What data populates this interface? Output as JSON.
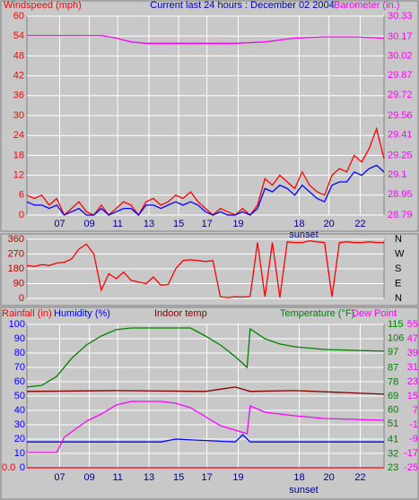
{
  "chart_data": [
    {
      "type": "line",
      "title": "Current last 24 hours : December 02 2004",
      "ylabel": "Windspeed (mph)",
      "y2label": "Barometer (in.)",
      "xlim": [
        0,
        24
      ],
      "xticks": [
        {
          "value": 2.2,
          "label": "07"
        },
        {
          "value": 4.2,
          "label": "09"
        },
        {
          "value": 6.1,
          "label": "11"
        },
        {
          "value": 8.2,
          "label": "13"
        },
        {
          "value": 10.2,
          "label": "15"
        },
        {
          "value": 12.1,
          "label": "17"
        },
        {
          "value": 14.2,
          "label": "19"
        },
        {
          "value": 18.3,
          "label": "18"
        },
        {
          "value": 20.3,
          "label": "20"
        },
        {
          "value": 22.4,
          "label": "22"
        }
      ],
      "annotation": {
        "text": "sunset",
        "x": 18.6
      },
      "ylim": [
        0,
        60
      ],
      "yticks": [
        0,
        6,
        12,
        18,
        24,
        30,
        36,
        42,
        48,
        54,
        60
      ],
      "y2lim": [
        28.79,
        30.33
      ],
      "y2ticks": [
        28.79,
        28.95,
        29.1,
        29.25,
        29.41,
        29.56,
        29.72,
        29.87,
        30.02,
        30.17,
        30.33
      ],
      "grid": true,
      "series": [
        {
          "color": "#ff0000",
          "x": [
            0,
            0.5,
            1,
            1.5,
            2,
            2.5,
            3,
            3.5,
            4,
            4.5,
            5,
            5.5,
            6,
            6.5,
            7,
            7.5,
            8,
            8.5,
            9,
            9.5,
            10,
            10.5,
            11,
            11.5,
            12,
            12.5,
            13,
            13.5,
            14,
            14.5,
            15,
            15.5,
            16,
            16.5,
            17,
            17.5,
            18,
            18.5,
            19,
            19.5,
            20,
            20.5,
            21,
            21.5,
            22,
            22.5,
            23,
            23.5,
            24
          ],
          "values": [
            6,
            5,
            6,
            3,
            5,
            0,
            2,
            4,
            1,
            0,
            3,
            0,
            2,
            4,
            3,
            0,
            4,
            5,
            3,
            4,
            6,
            5,
            7,
            4,
            2,
            0,
            2,
            1,
            0,
            2,
            0,
            3,
            11,
            9,
            12,
            10,
            8,
            13,
            9,
            7,
            6,
            12,
            14,
            13,
            18,
            16,
            20,
            26,
            17
          ]
        },
        {
          "color": "#0000ff",
          "x": [
            0,
            0.5,
            1,
            1.5,
            2,
            2.5,
            3,
            3.5,
            4,
            4.5,
            5,
            5.5,
            6,
            6.5,
            7,
            7.5,
            8,
            8.5,
            9,
            9.5,
            10,
            10.5,
            11,
            11.5,
            12,
            12.5,
            13,
            13.5,
            14,
            14.5,
            15,
            15.5,
            16,
            16.5,
            17,
            17.5,
            18,
            18.5,
            19,
            19.5,
            20,
            20.5,
            21,
            21.5,
            22,
            22.5,
            23,
            23.5,
            24
          ],
          "values": [
            4,
            3,
            3,
            2,
            3,
            0,
            1,
            2,
            0,
            0,
            2,
            0,
            1,
            2,
            2,
            0,
            3,
            3,
            2,
            3,
            4,
            3,
            4,
            3,
            1,
            0,
            1,
            0,
            0,
            1,
            0,
            2,
            8,
            7,
            9,
            8,
            6,
            9,
            7,
            5,
            4,
            9,
            10,
            10,
            13,
            12,
            14,
            15,
            13
          ]
        },
        {
          "color": "#ff00ff",
          "axis": "y2",
          "x": [
            0,
            5,
            6,
            7,
            8,
            14,
            16,
            18,
            20,
            22,
            24
          ],
          "values": [
            30.18,
            30.18,
            30.16,
            30.13,
            30.12,
            30.12,
            30.13,
            30.16,
            30.17,
            30.17,
            30.16
          ]
        }
      ]
    },
    {
      "type": "line",
      "xlim": [
        0,
        24
      ],
      "ylim": [
        0,
        360
      ],
      "yticks": [
        0,
        90,
        180,
        270,
        360
      ],
      "y2lim": [
        0,
        360
      ],
      "y2ticks": [
        {
          "value": 360,
          "label": "N"
        },
        {
          "value": 270,
          "label": "W"
        },
        {
          "value": 180,
          "label": "S"
        },
        {
          "value": 90,
          "label": "E"
        },
        {
          "value": 0,
          "label": "N"
        }
      ],
      "grid": true,
      "series": [
        {
          "color": "#ff0000",
          "x": [
            0,
            0.5,
            1,
            1.5,
            2,
            2.5,
            3,
            3.5,
            4,
            4.5,
            5,
            5.5,
            6,
            6.5,
            7,
            7.5,
            8,
            8.5,
            9,
            9.5,
            10,
            10.5,
            11,
            11.5,
            12,
            12.5,
            13,
            13.5,
            14,
            14.5,
            15,
            15.5,
            16,
            16.5,
            17,
            17.5,
            18,
            18.5,
            19,
            19.5,
            20,
            20.5,
            21,
            21.5,
            22,
            22.5,
            23,
            23.5,
            24
          ],
          "values": [
            200,
            195,
            205,
            200,
            215,
            220,
            240,
            300,
            330,
            270,
            50,
            150,
            120,
            160,
            110,
            100,
            90,
            130,
            80,
            85,
            180,
            230,
            235,
            230,
            225,
            230,
            10,
            5,
            10,
            8,
            12,
            340,
            10,
            340,
            5,
            345,
            340,
            340,
            350,
            345,
            340,
            10,
            340,
            345,
            340,
            340,
            345,
            340,
            340
          ]
        }
      ]
    },
    {
      "type": "line",
      "xlim": [
        0,
        24
      ],
      "xticks": [
        {
          "value": 2.2,
          "label": "07"
        },
        {
          "value": 4.2,
          "label": "09"
        },
        {
          "value": 6.1,
          "label": "11"
        },
        {
          "value": 8.2,
          "label": "13"
        },
        {
          "value": 10.2,
          "label": "15"
        },
        {
          "value": 12.1,
          "label": "17"
        },
        {
          "value": 14.2,
          "label": "19"
        },
        {
          "value": 18.3,
          "label": "18"
        },
        {
          "value": 20.3,
          "label": "20"
        },
        {
          "value": 22.4,
          "label": "22"
        }
      ],
      "annotation": {
        "text": "sunset",
        "x": 18.6
      },
      "grid": true,
      "series": [
        {
          "name": "Rainfall (in)",
          "color": "#ff0000",
          "ylim": [
            0,
            1
          ],
          "yticks": [
            {
              "value": 0,
              "label": "0.0"
            }
          ],
          "x": [
            0,
            24
          ],
          "values": [
            0,
            0
          ]
        },
        {
          "name": "Humidity (%)",
          "color": "#0000ff",
          "ylim": [
            0,
            100
          ],
          "yticks": [
            0,
            10,
            20,
            30,
            40,
            50,
            60,
            70,
            80,
            90,
            100
          ],
          "x": [
            0,
            9,
            10,
            14,
            14.5,
            15,
            24
          ],
          "values": [
            18,
            18,
            20,
            18,
            23,
            18,
            18
          ]
        },
        {
          "name": "Indoor temp",
          "color": "#800000",
          "ylim": [
            23,
            115
          ],
          "x": [
            0,
            6,
            12,
            14,
            15,
            18,
            24
          ],
          "values": [
            72,
            72.5,
            72,
            74.8,
            72,
            72.5,
            70.2
          ]
        },
        {
          "name": "Temperature (°F)",
          "color": "#008000",
          "ylim": [
            23,
            115
          ],
          "yticks": [
            23,
            32,
            41,
            51,
            60,
            69,
            78,
            87,
            97,
            106,
            115
          ],
          "x": [
            0,
            1,
            2,
            3,
            4,
            5,
            6,
            7,
            11,
            12,
            13,
            14,
            14.8,
            15,
            16,
            17,
            18,
            20,
            22,
            24
          ],
          "values": [
            74.8,
            75.9,
            81.6,
            93.2,
            101.8,
            107.5,
            111.6,
            112.7,
            112.7,
            107.5,
            101.8,
            94.3,
            87.4,
            112.1,
            105.8,
            102.4,
            100.6,
            98.9,
            98.3,
            97.8
          ]
        },
        {
          "name": "Dew Point",
          "color": "#ff00ff",
          "ylim": [
            -25,
            55
          ],
          "yticks": [
            -25,
            -17,
            -9,
            -1,
            7,
            15,
            23,
            31,
            39,
            47,
            55
          ],
          "x": [
            0,
            2,
            2.5,
            4,
            5,
            6,
            7,
            9,
            10,
            11,
            12,
            13,
            14,
            14.8,
            15,
            16,
            18,
            20,
            22,
            24
          ],
          "values": [
            -16.5,
            -16.5,
            -8,
            1,
            5,
            10,
            12,
            12,
            11,
            8.5,
            3.5,
            -1.5,
            -4,
            -6,
            9.5,
            6,
            4,
            2.5,
            2,
            1.5
          ]
        }
      ]
    }
  ]
}
